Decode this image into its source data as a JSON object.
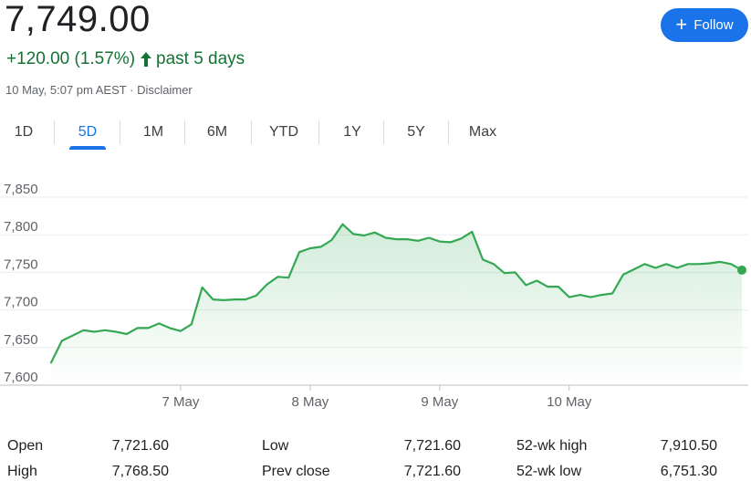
{
  "header": {
    "price": "7,749.00",
    "change": "+120.00 (1.57%)",
    "period": "past 5 days",
    "timestamp": "10 May, 5:07 pm AEST",
    "separator": "·",
    "disclaimer": "Disclaimer",
    "up_color": "#137333"
  },
  "follow_button": {
    "label": "Follow",
    "icon": "plus-icon",
    "color": "#1a73e8"
  },
  "range_tabs": [
    {
      "label": "1D",
      "active": false
    },
    {
      "label": "5D",
      "active": true
    },
    {
      "label": "1M",
      "active": false
    },
    {
      "label": "6M",
      "active": false
    },
    {
      "label": "YTD",
      "active": false
    },
    {
      "label": "1Y",
      "active": false
    },
    {
      "label": "5Y",
      "active": false
    },
    {
      "label": "Max",
      "active": false
    }
  ],
  "chart_data": {
    "type": "area",
    "line_color": "#34a853",
    "y_ticks": [
      "7,850",
      "7,800",
      "7,750",
      "7,700",
      "7,650",
      "7,600"
    ],
    "ylim": [
      7600,
      7850
    ],
    "x_ticks": [
      {
        "label": "7 May",
        "index": 12
      },
      {
        "label": "8 May",
        "index": 24
      },
      {
        "label": "9 May",
        "index": 36
      },
      {
        "label": "10 May",
        "index": 48
      }
    ],
    "values": [
      7630,
      7659,
      7666,
      7673,
      7671,
      7673,
      7671,
      7668,
      7676,
      7676,
      7682,
      7676,
      7672,
      7681,
      7730,
      7714,
      7713,
      7714,
      7714,
      7719,
      7734,
      7744,
      7743,
      7777,
      7782,
      7784,
      7793,
      7814,
      7801,
      7799,
      7803,
      7796,
      7794,
      7794,
      7792,
      7796,
      7791,
      7790,
      7795,
      7804,
      7767,
      7761,
      7749,
      7750,
      7733,
      7739,
      7731,
      7731,
      7717,
      7720,
      7717,
      7720,
      7722,
      7747,
      7754,
      7761,
      7756,
      7761,
      7756,
      7761,
      7761,
      7762,
      7764,
      7761,
      7753
    ],
    "grid": true
  },
  "stats": {
    "col1": [
      {
        "label": "Open",
        "value": "7,721.60"
      },
      {
        "label": "High",
        "value": "7,768.50"
      }
    ],
    "col2": [
      {
        "label": "Low",
        "value": "7,721.60"
      },
      {
        "label": "Prev close",
        "value": "7,721.60"
      }
    ],
    "col3": [
      {
        "label": "52-wk high",
        "value": "7,910.50"
      },
      {
        "label": "52-wk low",
        "value": "6,751.30"
      }
    ]
  }
}
